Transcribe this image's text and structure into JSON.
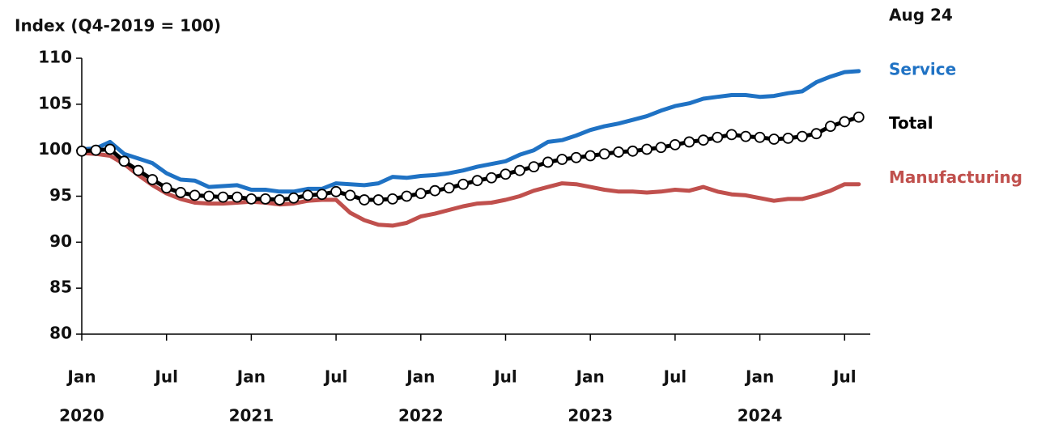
{
  "chart_data": {
    "type": "line",
    "title": "Aug 24",
    "y_label": "Index (Q4-2019 = 100)",
    "categories": [
      "Jan",
      null,
      null,
      null,
      null,
      null,
      "Jul",
      null,
      null,
      null,
      null,
      null,
      "Jan",
      null,
      null,
      null,
      null,
      null,
      "Jul",
      null,
      null,
      null,
      null,
      null,
      "Jan",
      null,
      null,
      null,
      null,
      null,
      "Jul",
      null,
      null,
      null,
      null,
      null,
      "Jan",
      null,
      null,
      null,
      null,
      null,
      "Jul",
      null,
      null,
      null,
      null,
      null,
      "Jan",
      null,
      null,
      null,
      null,
      null,
      "Jul",
      null
    ],
    "years": [
      "2020",
      "2021",
      "2022",
      "2023",
      "2024"
    ],
    "ylim": [
      80,
      110
    ],
    "yticks": [
      80,
      85,
      90,
      95,
      100,
      105,
      110
    ],
    "series": [
      {
        "name": "Service",
        "color": "#1f72c4",
        "markers": false,
        "values": [
          100.1,
          100.2,
          100.9,
          99.6,
          99.1,
          98.6,
          97.5,
          96.8,
          96.7,
          96.0,
          96.1,
          96.2,
          95.7,
          95.7,
          95.5,
          95.5,
          95.8,
          95.8,
          96.4,
          96.3,
          96.2,
          96.4,
          97.1,
          97.0,
          97.2,
          97.3,
          97.5,
          97.8,
          98.2,
          98.5,
          98.8,
          99.5,
          100.0,
          100.9,
          101.1,
          101.6,
          102.2,
          102.6,
          102.9,
          103.3,
          103.7,
          104.3,
          104.8,
          105.1,
          105.6,
          105.8,
          106.0,
          106.0,
          105.8,
          105.9,
          106.2,
          106.4,
          107.4,
          108.0,
          108.5,
          108.6
        ]
      },
      {
        "name": "Total",
        "color": "#000000",
        "markers": true,
        "values": [
          99.9,
          100.0,
          100.1,
          98.8,
          97.8,
          96.8,
          95.9,
          95.4,
          95.1,
          95.0,
          94.9,
          94.9,
          94.7,
          94.7,
          94.6,
          94.8,
          95.1,
          95.2,
          95.5,
          95.1,
          94.6,
          94.6,
          94.7,
          95.0,
          95.3,
          95.6,
          95.9,
          96.3,
          96.7,
          97.0,
          97.4,
          97.8,
          98.2,
          98.7,
          99.0,
          99.2,
          99.4,
          99.6,
          99.8,
          99.9,
          100.1,
          100.3,
          100.6,
          100.9,
          101.1,
          101.4,
          101.7,
          101.5,
          101.4,
          101.2,
          101.3,
          101.5,
          101.8,
          102.6,
          103.1,
          103.6
        ]
      },
      {
        "name": "Manufacturing",
        "color": "#c0504d",
        "markers": false,
        "values": [
          99.7,
          99.6,
          99.4,
          98.5,
          97.3,
          96.2,
          95.3,
          94.7,
          94.3,
          94.2,
          94.2,
          94.3,
          94.4,
          94.3,
          94.1,
          94.2,
          94.5,
          94.6,
          94.6,
          93.2,
          92.4,
          91.9,
          91.8,
          92.1,
          92.8,
          93.1,
          93.5,
          93.9,
          94.2,
          94.3,
          94.6,
          95.0,
          95.6,
          96.0,
          96.4,
          96.3,
          96.0,
          95.7,
          95.5,
          95.5,
          95.4,
          95.5,
          95.7,
          95.6,
          96.0,
          95.5,
          95.2,
          95.1,
          94.8,
          94.5,
          94.7,
          94.7,
          95.1,
          95.6,
          96.3,
          96.3
        ]
      }
    ]
  }
}
